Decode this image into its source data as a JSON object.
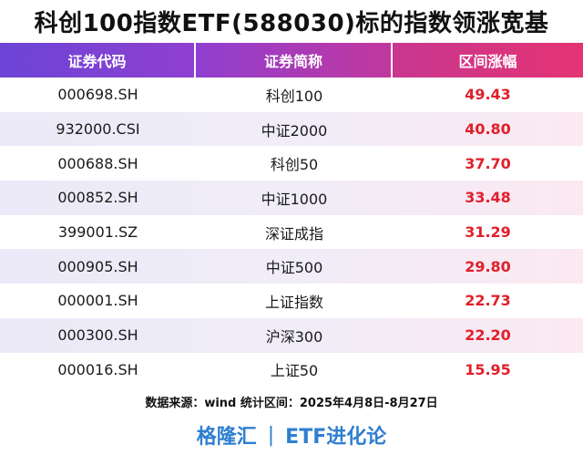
{
  "title": "科创100指数ETF(588030)标的指数领涨宽基",
  "table": {
    "headers": [
      "证券代码",
      "证券简称",
      "区间涨幅"
    ],
    "rows": [
      {
        "code": "000698.SH",
        "name": "科创100",
        "change": "49.43"
      },
      {
        "code": "932000.CSI",
        "name": "中证2000",
        "change": "40.80"
      },
      {
        "code": "000688.SH",
        "name": "科创50",
        "change": "37.70"
      },
      {
        "code": "000852.SH",
        "name": "中证1000",
        "change": "33.48"
      },
      {
        "code": "399001.SZ",
        "name": "深证成指",
        "change": "31.29"
      },
      {
        "code": "000905.SH",
        "name": "中证500",
        "change": "29.80"
      },
      {
        "code": "000001.SH",
        "name": "上证指数",
        "change": "22.73"
      },
      {
        "code": "000300.SH",
        "name": "沪深300",
        "change": "22.20"
      },
      {
        "code": "000016.SH",
        "name": "上证50",
        "change": "15.95"
      }
    ]
  },
  "source": "数据来源：wind 统计区间：2025年4月8日-8月27日",
  "footer": {
    "left": "格隆汇",
    "separator": "|",
    "right": "ETF进化论"
  },
  "colors": {
    "header_start": "#6b45d6",
    "header_end": "#e43474",
    "change_text": "#e0202a",
    "footer_text": "#2f7fd0"
  }
}
